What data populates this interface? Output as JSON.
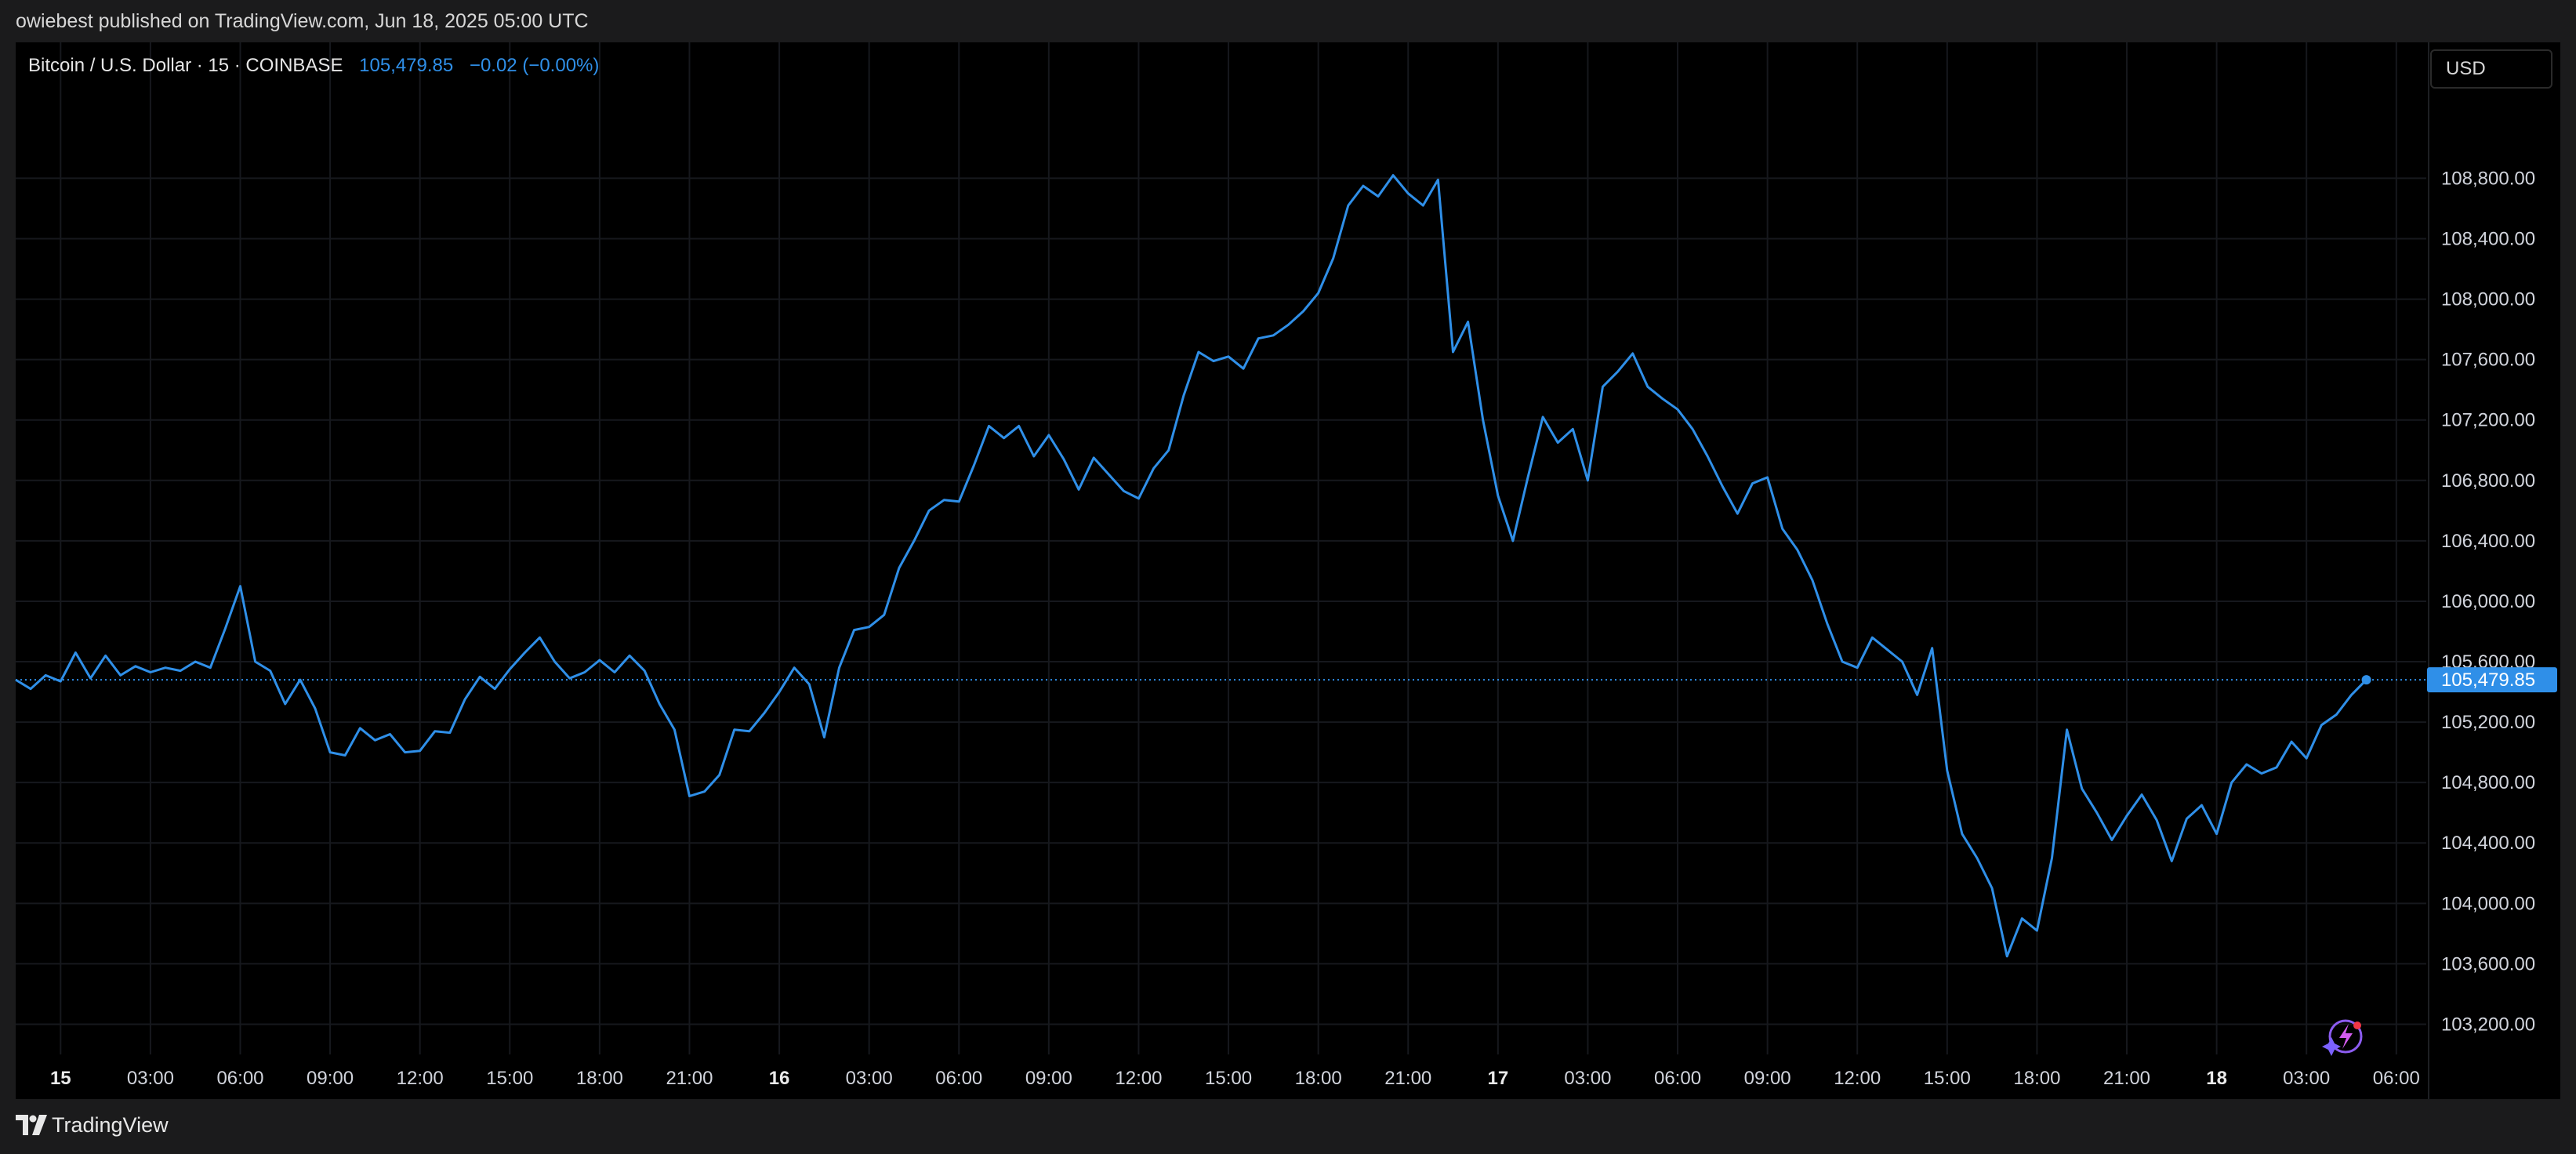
{
  "header": {
    "publisher": "owiebest published on TradingView.com, Jun 18, 2025 05:00 UTC"
  },
  "legend": {
    "symbol": "Bitcoin / U.S. Dollar · 15 · COINBASE",
    "price": "105,479.85",
    "change": "−0.02 (−0.00%)"
  },
  "currency_button": {
    "label": "USD"
  },
  "brand": {
    "name": "TradingView"
  },
  "last_price_label": "105,479.85",
  "colors": {
    "line": "#2f8fe8",
    "background": "#000000",
    "grid": "#16181d",
    "price_tag": "#2f8fe8"
  },
  "chart_data": {
    "type": "line",
    "grid": true,
    "y_axis_position": "right",
    "ylim": [
      103000,
      109700
    ],
    "y_ticks": [
      103200,
      103600,
      104000,
      104400,
      104800,
      105200,
      105600,
      106000,
      106400,
      106800,
      107200,
      107600,
      108000,
      108400,
      108800
    ],
    "y_tick_labels": [
      "103,200.00",
      "103,600.00",
      "104,000.00",
      "104,400.00",
      "104,800.00",
      "105,200.00",
      "105,600.00",
      "106,000.00",
      "106,400.00",
      "106,800.00",
      "107,200.00",
      "107,600.00",
      "108,000.00",
      "108,400.00",
      "108,800.00"
    ],
    "x_range": [
      "2025-06-14 22:30",
      "2025-06-18 07:00"
    ],
    "x_ticks": [
      {
        "t": "2025-06-15 00:00",
        "label": "15",
        "major": true
      },
      {
        "t": "2025-06-15 03:00",
        "label": "03:00"
      },
      {
        "t": "2025-06-15 06:00",
        "label": "06:00"
      },
      {
        "t": "2025-06-15 09:00",
        "label": "09:00"
      },
      {
        "t": "2025-06-15 12:00",
        "label": "12:00"
      },
      {
        "t": "2025-06-15 15:00",
        "label": "15:00"
      },
      {
        "t": "2025-06-15 18:00",
        "label": "18:00"
      },
      {
        "t": "2025-06-15 21:00",
        "label": "21:00"
      },
      {
        "t": "2025-06-16 00:00",
        "label": "16",
        "major": true
      },
      {
        "t": "2025-06-16 03:00",
        "label": "03:00"
      },
      {
        "t": "2025-06-16 06:00",
        "label": "06:00"
      },
      {
        "t": "2025-06-16 09:00",
        "label": "09:00"
      },
      {
        "t": "2025-06-16 12:00",
        "label": "12:00"
      },
      {
        "t": "2025-06-16 15:00",
        "label": "15:00"
      },
      {
        "t": "2025-06-16 18:00",
        "label": "18:00"
      },
      {
        "t": "2025-06-16 21:00",
        "label": "21:00"
      },
      {
        "t": "2025-06-17 00:00",
        "label": "17",
        "major": true
      },
      {
        "t": "2025-06-17 03:00",
        "label": "03:00"
      },
      {
        "t": "2025-06-17 06:00",
        "label": "06:00"
      },
      {
        "t": "2025-06-17 09:00",
        "label": "09:00"
      },
      {
        "t": "2025-06-17 12:00",
        "label": "12:00"
      },
      {
        "t": "2025-06-17 15:00",
        "label": "15:00"
      },
      {
        "t": "2025-06-17 18:00",
        "label": "18:00"
      },
      {
        "t": "2025-06-17 21:00",
        "label": "21:00"
      },
      {
        "t": "2025-06-18 00:00",
        "label": "18",
        "major": true
      },
      {
        "t": "2025-06-18 03:00",
        "label": "03:00"
      },
      {
        "t": "2025-06-18 06:00",
        "label": "06:00"
      }
    ],
    "last_price": 105479.85,
    "series": [
      {
        "interval": "15m",
        "points": [
          [
            "2025-06-14 22:30",
            105480
          ],
          [
            "2025-06-14 23:00",
            105420
          ],
          [
            "2025-06-14 23:30",
            105510
          ],
          [
            "2025-06-15 00:00",
            105470
          ],
          [
            "2025-06-15 00:30",
            105660
          ],
          [
            "2025-06-15 01:00",
            105490
          ],
          [
            "2025-06-15 01:30",
            105640
          ],
          [
            "2025-06-15 02:00",
            105510
          ],
          [
            "2025-06-15 02:30",
            105570
          ],
          [
            "2025-06-15 03:00",
            105530
          ],
          [
            "2025-06-15 03:30",
            105560
          ],
          [
            "2025-06-15 04:00",
            105540
          ],
          [
            "2025-06-15 04:30",
            105600
          ],
          [
            "2025-06-15 05:00",
            105560
          ],
          [
            "2025-06-15 05:30",
            105820
          ],
          [
            "2025-06-15 06:00",
            106100
          ],
          [
            "2025-06-15 06:30",
            105600
          ],
          [
            "2025-06-15 07:00",
            105540
          ],
          [
            "2025-06-15 07:30",
            105320
          ],
          [
            "2025-06-15 08:00",
            105480
          ],
          [
            "2025-06-15 08:30",
            105290
          ],
          [
            "2025-06-15 09:00",
            105000
          ],
          [
            "2025-06-15 09:30",
            104980
          ],
          [
            "2025-06-15 10:00",
            105160
          ],
          [
            "2025-06-15 10:30",
            105080
          ],
          [
            "2025-06-15 11:00",
            105120
          ],
          [
            "2025-06-15 11:30",
            105000
          ],
          [
            "2025-06-15 12:00",
            105010
          ],
          [
            "2025-06-15 12:30",
            105140
          ],
          [
            "2025-06-15 13:00",
            105130
          ],
          [
            "2025-06-15 13:30",
            105350
          ],
          [
            "2025-06-15 14:00",
            105500
          ],
          [
            "2025-06-15 14:30",
            105420
          ],
          [
            "2025-06-15 15:00",
            105550
          ],
          [
            "2025-06-15 15:30",
            105660
          ],
          [
            "2025-06-15 16:00",
            105760
          ],
          [
            "2025-06-15 16:30",
            105600
          ],
          [
            "2025-06-15 17:00",
            105490
          ],
          [
            "2025-06-15 17:30",
            105530
          ],
          [
            "2025-06-15 18:00",
            105610
          ],
          [
            "2025-06-15 18:30",
            105530
          ],
          [
            "2025-06-15 19:00",
            105640
          ],
          [
            "2025-06-15 19:30",
            105540
          ],
          [
            "2025-06-15 20:00",
            105320
          ],
          [
            "2025-06-15 20:30",
            105150
          ],
          [
            "2025-06-15 21:00",
            104710
          ],
          [
            "2025-06-15 21:30",
            104740
          ],
          [
            "2025-06-15 22:00",
            104850
          ],
          [
            "2025-06-15 22:30",
            105150
          ],
          [
            "2025-06-15 23:00",
            105140
          ],
          [
            "2025-06-15 23:30",
            105260
          ],
          [
            "2025-06-16 00:00",
            105400
          ],
          [
            "2025-06-16 00:30",
            105560
          ],
          [
            "2025-06-16 01:00",
            105450
          ],
          [
            "2025-06-16 01:30",
            105100
          ],
          [
            "2025-06-16 02:00",
            105560
          ],
          [
            "2025-06-16 02:30",
            105810
          ],
          [
            "2025-06-16 03:00",
            105830
          ],
          [
            "2025-06-16 03:30",
            105910
          ],
          [
            "2025-06-16 04:00",
            106220
          ],
          [
            "2025-06-16 04:30",
            106400
          ],
          [
            "2025-06-16 05:00",
            106600
          ],
          [
            "2025-06-16 05:30",
            106670
          ],
          [
            "2025-06-16 06:00",
            106660
          ],
          [
            "2025-06-16 06:30",
            106900
          ],
          [
            "2025-06-16 07:00",
            107160
          ],
          [
            "2025-06-16 07:30",
            107080
          ],
          [
            "2025-06-16 08:00",
            107160
          ],
          [
            "2025-06-16 08:30",
            106960
          ],
          [
            "2025-06-16 09:00",
            107100
          ],
          [
            "2025-06-16 09:30",
            106940
          ],
          [
            "2025-06-16 10:00",
            106740
          ],
          [
            "2025-06-16 10:30",
            106950
          ],
          [
            "2025-06-16 11:00",
            106840
          ],
          [
            "2025-06-16 11:30",
            106730
          ],
          [
            "2025-06-16 12:00",
            106680
          ],
          [
            "2025-06-16 12:30",
            106880
          ],
          [
            "2025-06-16 13:00",
            107000
          ],
          [
            "2025-06-16 13:30",
            107360
          ],
          [
            "2025-06-16 14:00",
            107650
          ],
          [
            "2025-06-16 14:30",
            107590
          ],
          [
            "2025-06-16 15:00",
            107620
          ],
          [
            "2025-06-16 15:30",
            107540
          ],
          [
            "2025-06-16 16:00",
            107740
          ],
          [
            "2025-06-16 16:30",
            107760
          ],
          [
            "2025-06-16 17:00",
            107830
          ],
          [
            "2025-06-16 17:30",
            107920
          ],
          [
            "2025-06-16 18:00",
            108040
          ],
          [
            "2025-06-16 18:30",
            108270
          ],
          [
            "2025-06-16 19:00",
            108620
          ],
          [
            "2025-06-16 19:30",
            108750
          ],
          [
            "2025-06-16 20:00",
            108680
          ],
          [
            "2025-06-16 20:30",
            108820
          ],
          [
            "2025-06-16 21:00",
            108700
          ],
          [
            "2025-06-16 21:30",
            108620
          ],
          [
            "2025-06-16 22:00",
            108790
          ],
          [
            "2025-06-16 22:30",
            107650
          ],
          [
            "2025-06-16 23:00",
            107850
          ],
          [
            "2025-06-16 23:30",
            107200
          ],
          [
            "2025-06-17 00:00",
            106700
          ],
          [
            "2025-06-17 00:30",
            106400
          ],
          [
            "2025-06-17 01:00",
            106820
          ],
          [
            "2025-06-17 01:30",
            107220
          ],
          [
            "2025-06-17 02:00",
            107050
          ],
          [
            "2025-06-17 02:30",
            107140
          ],
          [
            "2025-06-17 03:00",
            106800
          ],
          [
            "2025-06-17 03:30",
            107420
          ],
          [
            "2025-06-17 04:00",
            107520
          ],
          [
            "2025-06-17 04:30",
            107640
          ],
          [
            "2025-06-17 05:00",
            107420
          ],
          [
            "2025-06-17 05:30",
            107340
          ],
          [
            "2025-06-17 06:00",
            107270
          ],
          [
            "2025-06-17 06:30",
            107140
          ],
          [
            "2025-06-17 07:00",
            106960
          ],
          [
            "2025-06-17 07:30",
            106760
          ],
          [
            "2025-06-17 08:00",
            106580
          ],
          [
            "2025-06-17 08:30",
            106780
          ],
          [
            "2025-06-17 09:00",
            106820
          ],
          [
            "2025-06-17 09:30",
            106480
          ],
          [
            "2025-06-17 10:00",
            106340
          ],
          [
            "2025-06-17 10:30",
            106140
          ],
          [
            "2025-06-17 11:00",
            105850
          ],
          [
            "2025-06-17 11:30",
            105600
          ],
          [
            "2025-06-17 12:00",
            105560
          ],
          [
            "2025-06-17 12:30",
            105760
          ],
          [
            "2025-06-17 13:00",
            105680
          ],
          [
            "2025-06-17 13:30",
            105600
          ],
          [
            "2025-06-17 14:00",
            105380
          ],
          [
            "2025-06-17 14:30",
            105690
          ],
          [
            "2025-06-17 15:00",
            104880
          ],
          [
            "2025-06-17 15:30",
            104460
          ],
          [
            "2025-06-17 16:00",
            104300
          ],
          [
            "2025-06-17 16:30",
            104100
          ],
          [
            "2025-06-17 17:00",
            103650
          ],
          [
            "2025-06-17 17:30",
            103900
          ],
          [
            "2025-06-17 18:00",
            103820
          ],
          [
            "2025-06-17 18:30",
            104300
          ],
          [
            "2025-06-17 19:00",
            105150
          ],
          [
            "2025-06-17 19:30",
            104760
          ],
          [
            "2025-06-17 20:00",
            104600
          ],
          [
            "2025-06-17 20:30",
            104420
          ],
          [
            "2025-06-17 21:00",
            104580
          ],
          [
            "2025-06-17 21:30",
            104720
          ],
          [
            "2025-06-17 22:00",
            104550
          ],
          [
            "2025-06-17 22:30",
            104280
          ],
          [
            "2025-06-17 23:00",
            104560
          ],
          [
            "2025-06-17 23:30",
            104650
          ],
          [
            "2025-06-18 00:00",
            104460
          ],
          [
            "2025-06-18 00:30",
            104800
          ],
          [
            "2025-06-18 01:00",
            104920
          ],
          [
            "2025-06-18 01:30",
            104860
          ],
          [
            "2025-06-18 02:00",
            104900
          ],
          [
            "2025-06-18 02:30",
            105070
          ],
          [
            "2025-06-18 03:00",
            104960
          ],
          [
            "2025-06-18 03:30",
            105180
          ],
          [
            "2025-06-18 04:00",
            105250
          ],
          [
            "2025-06-18 04:30",
            105380
          ],
          [
            "2025-06-18 05:00",
            105480
          ]
        ]
      }
    ]
  }
}
